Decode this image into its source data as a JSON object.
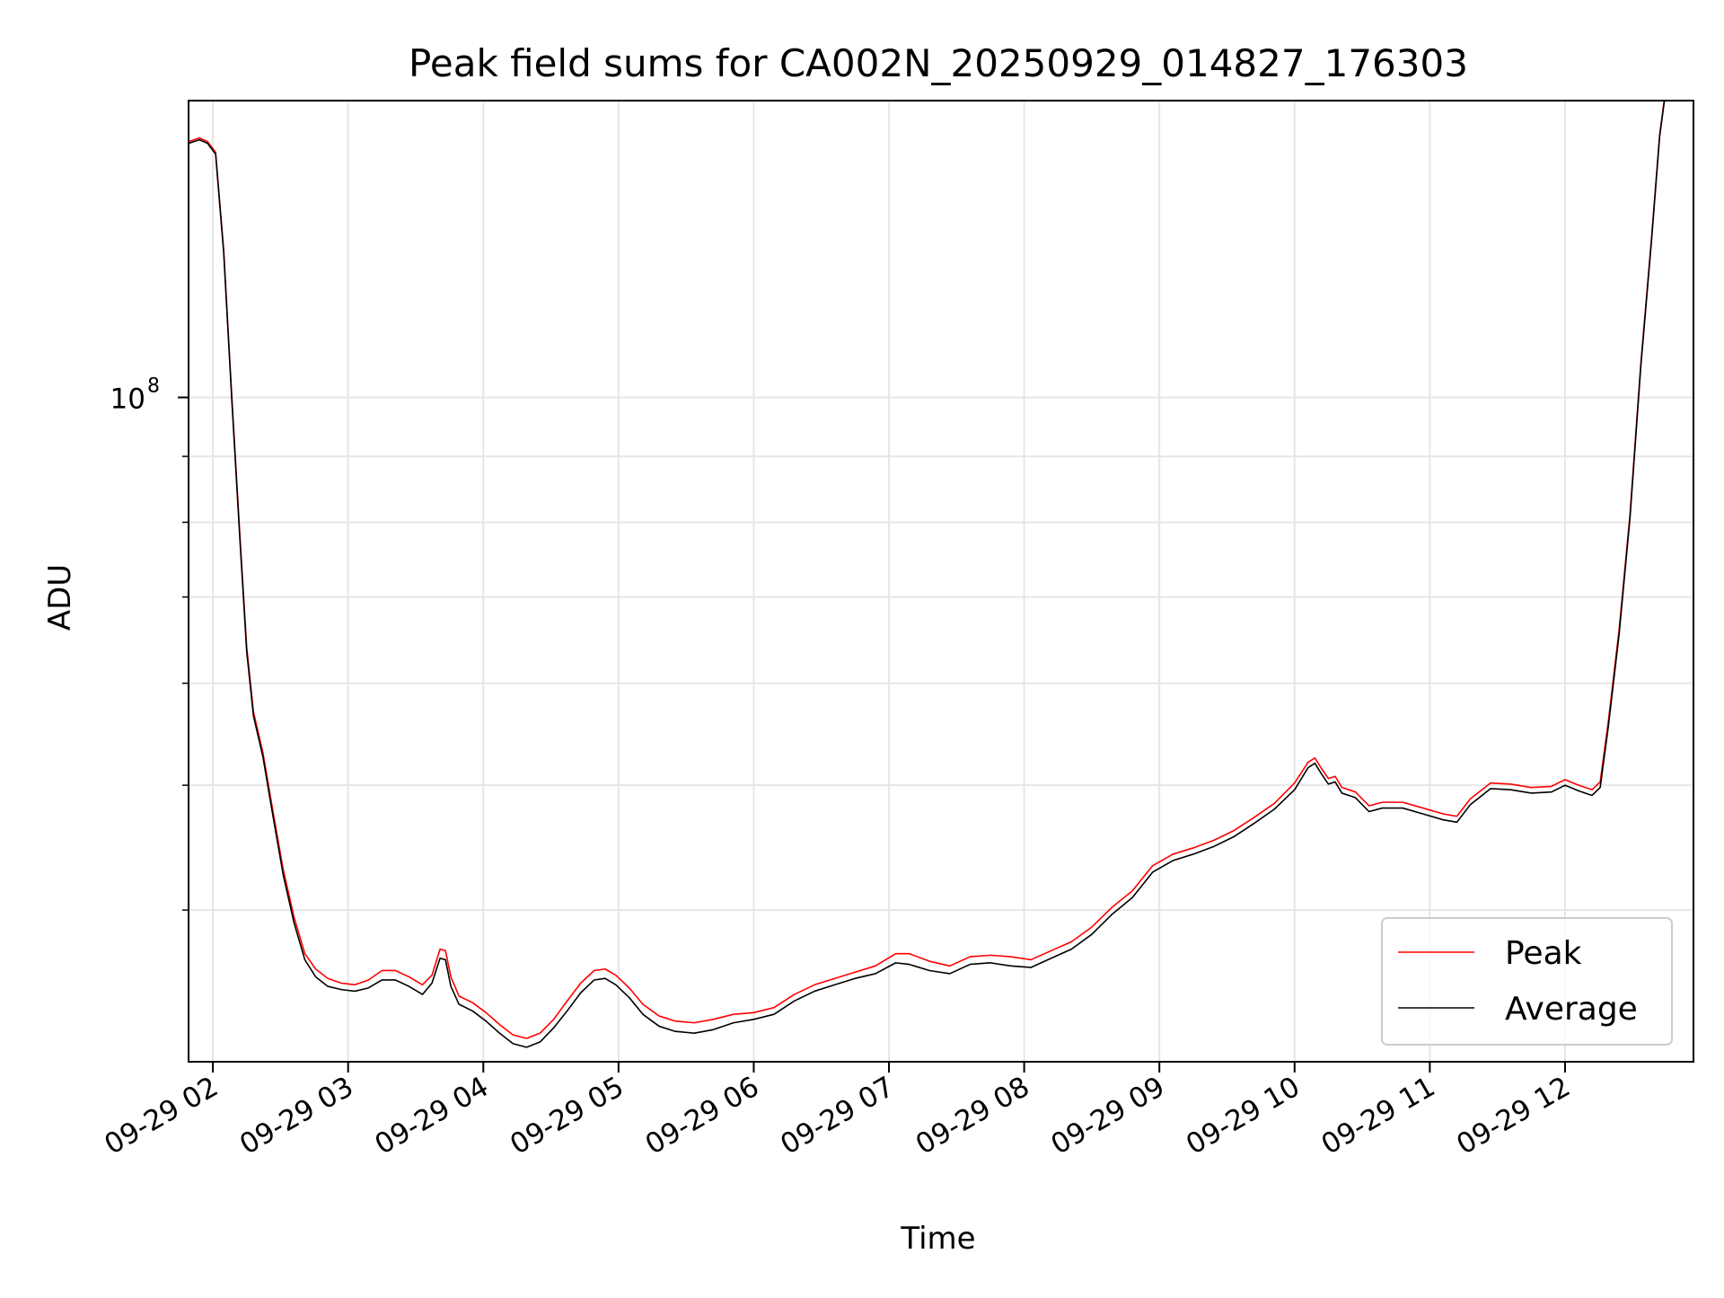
{
  "chart_data": {
    "type": "line",
    "title": "Peak field sums for CA002N_20250929_014827_176303",
    "xlabel": "Time",
    "ylabel": "ADU",
    "yscale": "log",
    "ytick": {
      "label_base": "10",
      "label_exp": "8",
      "value": 100000000
    },
    "ylim": [
      30500000,
      170000000
    ],
    "xlim_hours": [
      1.82,
      12.95
    ],
    "xticks": [
      {
        "label": "09-29 02",
        "hour": 2
      },
      {
        "label": "09-29 03",
        "hour": 3
      },
      {
        "label": "09-29 04",
        "hour": 4
      },
      {
        "label": "09-29 05",
        "hour": 5
      },
      {
        "label": "09-29 06",
        "hour": 6
      },
      {
        "label": "09-29 07",
        "hour": 7
      },
      {
        "label": "09-29 08",
        "hour": 8
      },
      {
        "label": "09-29 09",
        "hour": 9
      },
      {
        "label": "09-29 10",
        "hour": 10
      },
      {
        "label": "09-29 11",
        "hour": 11
      },
      {
        "label": "09-29 12",
        "hour": 12
      }
    ],
    "grid": true,
    "legend_position": "lower-right",
    "colors": {
      "peak": "#ff0000",
      "average": "#000000",
      "grid": "#e6e6e6"
    },
    "series": [
      {
        "name": "Peak",
        "color": "#ff0000",
        "points": [
          [
            1.82,
            158000000
          ],
          [
            1.9,
            159000000
          ],
          [
            1.96,
            158000000
          ],
          [
            2.02,
            155000000
          ],
          [
            2.08,
            130000000
          ],
          [
            2.14,
            100000000
          ],
          [
            2.2,
            78000000
          ],
          [
            2.25,
            64000000
          ],
          [
            2.3,
            57000000
          ],
          [
            2.37,
            53000000
          ],
          [
            2.44,
            48000000
          ],
          [
            2.52,
            43000000
          ],
          [
            2.6,
            39500000
          ],
          [
            2.68,
            37000000
          ],
          [
            2.76,
            36000000
          ],
          [
            2.85,
            35400000
          ],
          [
            2.95,
            35100000
          ],
          [
            3.05,
            35000000
          ],
          [
            3.15,
            35300000
          ],
          [
            3.25,
            35900000
          ],
          [
            3.35,
            35900000
          ],
          [
            3.45,
            35500000
          ],
          [
            3.55,
            35000000
          ],
          [
            3.62,
            35600000
          ],
          [
            3.68,
            37300000
          ],
          [
            3.72,
            37200000
          ],
          [
            3.76,
            35500000
          ],
          [
            3.82,
            34300000
          ],
          [
            3.92,
            33900000
          ],
          [
            4.02,
            33300000
          ],
          [
            4.12,
            32600000
          ],
          [
            4.22,
            32000000
          ],
          [
            4.32,
            31800000
          ],
          [
            4.42,
            32100000
          ],
          [
            4.52,
            32900000
          ],
          [
            4.62,
            34000000
          ],
          [
            4.72,
            35100000
          ],
          [
            4.82,
            35900000
          ],
          [
            4.9,
            36000000
          ],
          [
            4.98,
            35600000
          ],
          [
            5.08,
            34800000
          ],
          [
            5.18,
            33800000
          ],
          [
            5.3,
            33100000
          ],
          [
            5.42,
            32800000
          ],
          [
            5.56,
            32700000
          ],
          [
            5.7,
            32900000
          ],
          [
            5.85,
            33200000
          ],
          [
            6.0,
            33300000
          ],
          [
            6.15,
            33600000
          ],
          [
            6.3,
            34400000
          ],
          [
            6.45,
            35000000
          ],
          [
            6.6,
            35400000
          ],
          [
            6.75,
            35800000
          ],
          [
            6.9,
            36200000
          ],
          [
            7.05,
            37000000
          ],
          [
            7.15,
            37000000
          ],
          [
            7.3,
            36500000
          ],
          [
            7.45,
            36200000
          ],
          [
            7.6,
            36800000
          ],
          [
            7.75,
            36900000
          ],
          [
            7.9,
            36800000
          ],
          [
            8.05,
            36600000
          ],
          [
            8.2,
            37200000
          ],
          [
            8.35,
            37800000
          ],
          [
            8.5,
            38800000
          ],
          [
            8.65,
            40200000
          ],
          [
            8.8,
            41400000
          ],
          [
            8.95,
            43300000
          ],
          [
            9.1,
            44200000
          ],
          [
            9.25,
            44700000
          ],
          [
            9.4,
            45300000
          ],
          [
            9.55,
            46100000
          ],
          [
            9.7,
            47200000
          ],
          [
            9.85,
            48400000
          ],
          [
            10.0,
            50200000
          ],
          [
            10.1,
            52100000
          ],
          [
            10.15,
            52500000
          ],
          [
            10.2,
            51500000
          ],
          [
            10.25,
            50600000
          ],
          [
            10.3,
            50800000
          ],
          [
            10.35,
            49800000
          ],
          [
            10.45,
            49400000
          ],
          [
            10.55,
            48200000
          ],
          [
            10.65,
            48500000
          ],
          [
            10.8,
            48500000
          ],
          [
            10.95,
            48000000
          ],
          [
            11.1,
            47500000
          ],
          [
            11.2,
            47300000
          ],
          [
            11.3,
            48800000
          ],
          [
            11.45,
            50200000
          ],
          [
            11.6,
            50100000
          ],
          [
            11.75,
            49800000
          ],
          [
            11.9,
            49900000
          ],
          [
            12.0,
            50500000
          ],
          [
            12.1,
            50000000
          ],
          [
            12.2,
            49600000
          ],
          [
            12.26,
            50300000
          ],
          [
            12.32,
            56000000
          ],
          [
            12.4,
            66000000
          ],
          [
            12.48,
            81000000
          ],
          [
            12.56,
            106000000
          ],
          [
            12.64,
            133000000
          ],
          [
            12.7,
            160000000
          ],
          [
            12.74,
            172000000
          ]
        ]
      },
      {
        "name": "Average",
        "color": "#000000",
        "points": [
          [
            1.82,
            157500000
          ],
          [
            1.9,
            158500000
          ],
          [
            1.96,
            157500000
          ],
          [
            2.02,
            154500000
          ],
          [
            2.08,
            129500000
          ],
          [
            2.14,
            99500000
          ],
          [
            2.2,
            77500000
          ],
          [
            2.25,
            63500000
          ],
          [
            2.3,
            56600000
          ],
          [
            2.37,
            52600000
          ],
          [
            2.44,
            47600000
          ],
          [
            2.52,
            42600000
          ],
          [
            2.6,
            39100000
          ],
          [
            2.68,
            36600000
          ],
          [
            2.76,
            35500000
          ],
          [
            2.85,
            34900000
          ],
          [
            2.95,
            34700000
          ],
          [
            3.05,
            34600000
          ],
          [
            3.15,
            34800000
          ],
          [
            3.25,
            35300000
          ],
          [
            3.35,
            35300000
          ],
          [
            3.45,
            34900000
          ],
          [
            3.55,
            34400000
          ],
          [
            3.62,
            35100000
          ],
          [
            3.68,
            36700000
          ],
          [
            3.72,
            36600000
          ],
          [
            3.76,
            34900000
          ],
          [
            3.82,
            33800000
          ],
          [
            3.92,
            33400000
          ],
          [
            4.02,
            32800000
          ],
          [
            4.12,
            32100000
          ],
          [
            4.22,
            31500000
          ],
          [
            4.32,
            31300000
          ],
          [
            4.42,
            31600000
          ],
          [
            4.52,
            32400000
          ],
          [
            4.62,
            33400000
          ],
          [
            4.72,
            34500000
          ],
          [
            4.82,
            35300000
          ],
          [
            4.9,
            35400000
          ],
          [
            4.98,
            35000000
          ],
          [
            5.08,
            34200000
          ],
          [
            5.18,
            33200000
          ],
          [
            5.3,
            32500000
          ],
          [
            5.42,
            32200000
          ],
          [
            5.56,
            32100000
          ],
          [
            5.7,
            32300000
          ],
          [
            5.85,
            32700000
          ],
          [
            6.0,
            32900000
          ],
          [
            6.15,
            33200000
          ],
          [
            6.3,
            34000000
          ],
          [
            6.45,
            34600000
          ],
          [
            6.6,
            35000000
          ],
          [
            6.75,
            35400000
          ],
          [
            6.9,
            35700000
          ],
          [
            7.05,
            36400000
          ],
          [
            7.15,
            36300000
          ],
          [
            7.3,
            35900000
          ],
          [
            7.45,
            35700000
          ],
          [
            7.6,
            36300000
          ],
          [
            7.75,
            36400000
          ],
          [
            7.9,
            36200000
          ],
          [
            8.05,
            36100000
          ],
          [
            8.2,
            36700000
          ],
          [
            8.35,
            37300000
          ],
          [
            8.5,
            38300000
          ],
          [
            8.65,
            39700000
          ],
          [
            8.8,
            40900000
          ],
          [
            8.95,
            42800000
          ],
          [
            9.1,
            43700000
          ],
          [
            9.25,
            44200000
          ],
          [
            9.4,
            44800000
          ],
          [
            9.55,
            45600000
          ],
          [
            9.7,
            46700000
          ],
          [
            9.85,
            47900000
          ],
          [
            10.0,
            49600000
          ],
          [
            10.1,
            51600000
          ],
          [
            10.15,
            52000000
          ],
          [
            10.2,
            51000000
          ],
          [
            10.25,
            50100000
          ],
          [
            10.3,
            50300000
          ],
          [
            10.35,
            49300000
          ],
          [
            10.45,
            48900000
          ],
          [
            10.55,
            47700000
          ],
          [
            10.65,
            48000000
          ],
          [
            10.8,
            48000000
          ],
          [
            10.95,
            47500000
          ],
          [
            11.1,
            47000000
          ],
          [
            11.2,
            46800000
          ],
          [
            11.3,
            48300000
          ],
          [
            11.45,
            49700000
          ],
          [
            11.6,
            49600000
          ],
          [
            11.75,
            49300000
          ],
          [
            11.9,
            49400000
          ],
          [
            12.0,
            50000000
          ],
          [
            12.1,
            49500000
          ],
          [
            12.2,
            49100000
          ],
          [
            12.26,
            49800000
          ],
          [
            12.32,
            55500000
          ],
          [
            12.4,
            65500000
          ],
          [
            12.48,
            80500000
          ],
          [
            12.56,
            105500000
          ],
          [
            12.64,
            132500000
          ],
          [
            12.7,
            159500000
          ],
          [
            12.74,
            171500000
          ]
        ]
      }
    ]
  }
}
